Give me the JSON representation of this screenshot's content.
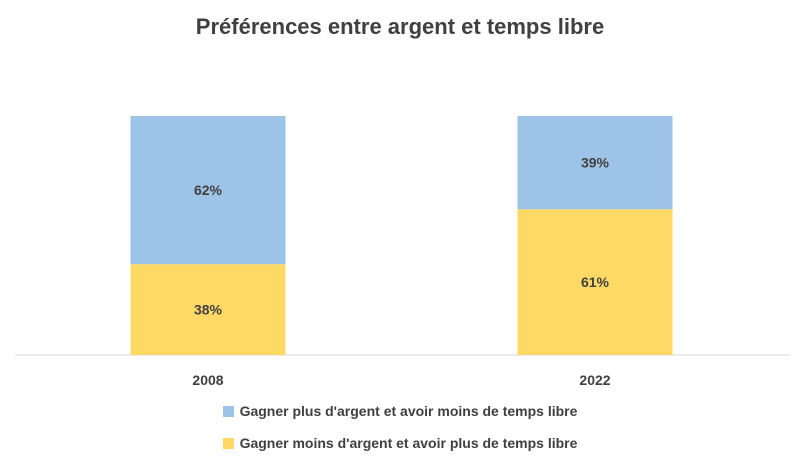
{
  "chart_data": {
    "type": "bar",
    "stacked": true,
    "title": "Préférences entre argent et temps libre",
    "categories": [
      "2008",
      "2022"
    ],
    "series": [
      {
        "name": "Gagner moins d'argent et avoir plus de temps libre",
        "values": [
          38,
          61
        ],
        "labels": [
          "38%",
          "61%"
        ],
        "color": "#FFD966"
      },
      {
        "name": "Gagner plus d'argent et avoir moins de temps libre",
        "values": [
          62,
          39
        ],
        "labels": [
          "62%",
          "39%"
        ],
        "color": "#9DC3E6"
      }
    ],
    "ylim": [
      0,
      100
    ],
    "grid": false,
    "legend_position": "bottom"
  }
}
